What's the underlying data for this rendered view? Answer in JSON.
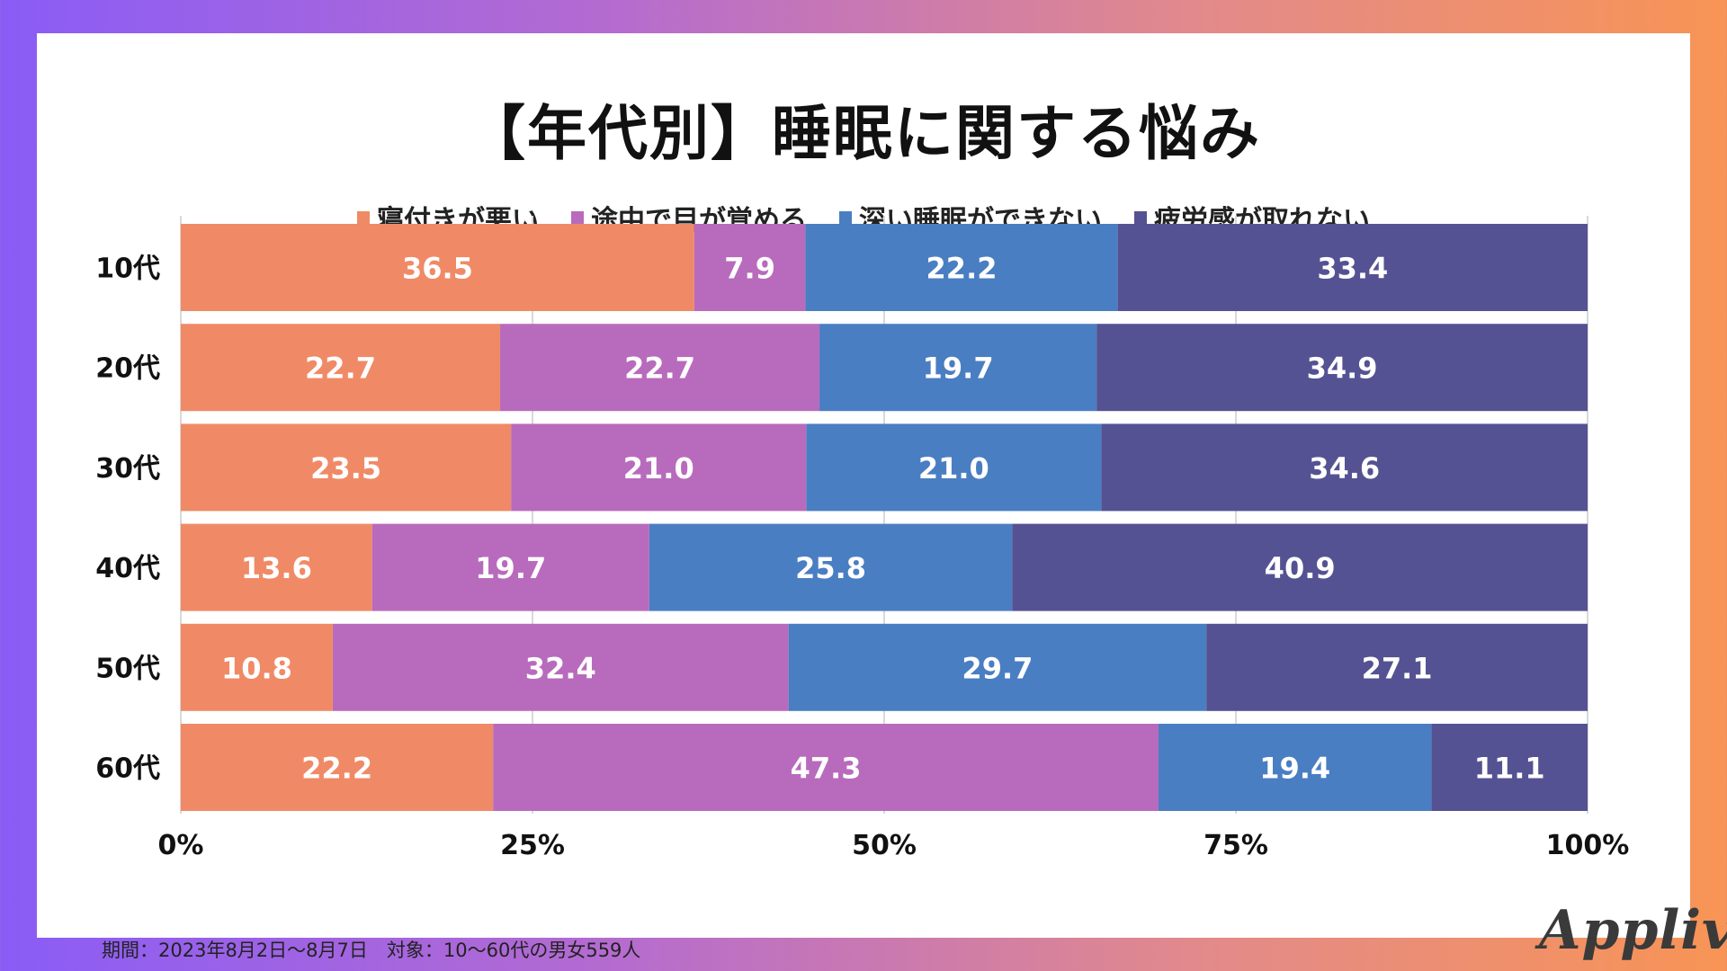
{
  "chart_data": {
    "type": "bar",
    "orientation": "horizontal",
    "stacked": true,
    "title": "【年代別】睡眠に関する悩み",
    "categories": [
      "10代",
      "20代",
      "30代",
      "40代",
      "50代",
      "60代"
    ],
    "series": [
      {
        "name": "寝付きが悪い",
        "color": "#f08a66",
        "values": [
          36.5,
          22.7,
          23.5,
          13.6,
          10.8,
          22.2
        ]
      },
      {
        "name": "途中で目が覚める",
        "color": "#b86bbc",
        "values": [
          7.9,
          22.7,
          21.0,
          19.7,
          32.4,
          47.3
        ]
      },
      {
        "name": "深い睡眠ができない",
        "color": "#4a7ec2",
        "values": [
          22.2,
          19.7,
          21.0,
          25.8,
          29.7,
          19.4
        ]
      },
      {
        "name": "疲労感が取れない",
        "color": "#555293",
        "values": [
          33.4,
          34.9,
          34.6,
          40.9,
          27.1,
          11.1
        ]
      }
    ],
    "value_labels": [
      [
        "36.5",
        "7.9",
        "22.2",
        "33.4"
      ],
      [
        "22.7",
        "22.7",
        "19.7",
        "34.9"
      ],
      [
        "23.5",
        "21.0",
        "21.0",
        "34.6"
      ],
      [
        "13.6",
        "19.7",
        "25.8",
        "40.9"
      ],
      [
        "10.8",
        "32.4",
        "29.7",
        "27.1"
      ],
      [
        "22.2",
        "47.3",
        "19.4",
        "11.1"
      ]
    ],
    "x_ticks": [
      0,
      25,
      50,
      75,
      100
    ],
    "x_tick_labels": [
      "0%",
      "25%",
      "50%",
      "75%",
      "100%"
    ],
    "xlim": [
      0,
      100
    ],
    "grid": true,
    "legend_position": "top-center"
  },
  "footer": {
    "note": "期間：2023年8月2日〜8月7日　対象：10〜60代の男女559人"
  },
  "brand": {
    "logo_text": "Appliv"
  }
}
